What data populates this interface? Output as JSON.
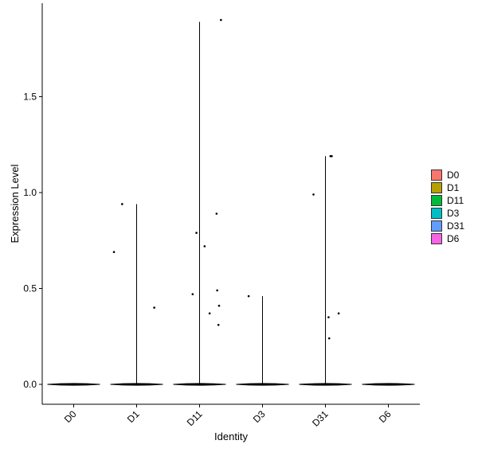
{
  "chart_data": {
    "type": "violin",
    "xlabel": "Identity",
    "ylabel": "Expression Level",
    "ylim": [
      -0.1,
      1.98
    ],
    "yticks": [
      "0.0",
      "0.5",
      "1.0",
      "1.5"
    ],
    "categories": [
      "D0",
      "D1",
      "D11",
      "D3",
      "D31",
      "D6"
    ],
    "violin_max": [
      0,
      0.94,
      1.89,
      0.46,
      1.19,
      0
    ],
    "points": [
      {
        "category": "D1",
        "offset": -0.36,
        "y": 0.69
      },
      {
        "category": "D1",
        "offset": -0.23,
        "y": 0.94
      },
      {
        "category": "D1",
        "offset": 0.28,
        "y": 0.4
      },
      {
        "category": "D11",
        "offset": -0.11,
        "y": 0.47
      },
      {
        "category": "D11",
        "offset": -0.05,
        "y": 0.79
      },
      {
        "category": "D11",
        "offset": 0.08,
        "y": 0.72
      },
      {
        "category": "D11",
        "offset": 0.16,
        "y": 0.37
      },
      {
        "category": "D11",
        "offset": 0.27,
        "y": 0.89
      },
      {
        "category": "D11",
        "offset": 0.28,
        "y": 0.49
      },
      {
        "category": "D11",
        "offset": 0.31,
        "y": 0.41
      },
      {
        "category": "D11",
        "offset": 0.3,
        "y": 0.31
      },
      {
        "category": "D11",
        "offset": 0.34,
        "y": 1.9
      },
      {
        "category": "D3",
        "offset": -0.22,
        "y": 0.46
      },
      {
        "category": "D31",
        "offset": -0.19,
        "y": 0.99
      },
      {
        "category": "D31",
        "offset": 0.05,
        "y": 0.35
      },
      {
        "category": "D31",
        "offset": 0.06,
        "y": 0.24
      },
      {
        "category": "D31",
        "offset": 0.08,
        "y": 1.19
      },
      {
        "category": "D31",
        "offset": 0.1,
        "y": 1.19
      },
      {
        "category": "D31",
        "offset": 0.21,
        "y": 0.37
      }
    ],
    "legend": {
      "placement": "right",
      "entries": [
        {
          "label": "D0",
          "color": "#F8766D"
        },
        {
          "label": "D1",
          "color": "#B79F00"
        },
        {
          "label": "D11",
          "color": "#00BA38"
        },
        {
          "label": "D3",
          "color": "#00BFC4"
        },
        {
          "label": "D31",
          "color": "#619CFF"
        },
        {
          "label": "D6",
          "color": "#F564E3"
        }
      ]
    },
    "grid": false
  }
}
